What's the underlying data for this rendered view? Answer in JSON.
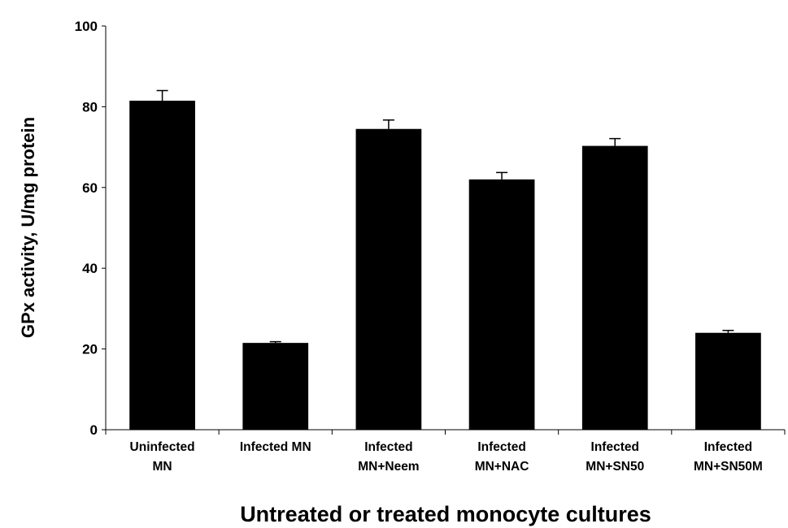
{
  "chart_data": {
    "type": "bar",
    "x_label": "Untreated or treated  monocyte cultures",
    "y_label": "GPx activity, U/mg protein",
    "categories": [
      "Uninfected\nMN",
      "Infected MN",
      "Infected\nMN+Neem",
      "Infected\nMN+NAC",
      "Infected\nMN+SN50",
      "Infected\nMN+SN50M"
    ],
    "values": [
      81.5,
      21.5,
      74.5,
      62,
      70.3,
      24
    ],
    "errors": [
      2.5,
      0.3,
      2.2,
      1.7,
      1.8,
      0.6
    ],
    "color": "#000000",
    "ylim": [
      0,
      100
    ],
    "yticks": [
      0,
      20,
      40,
      60,
      80,
      100
    ],
    "grid": false
  }
}
